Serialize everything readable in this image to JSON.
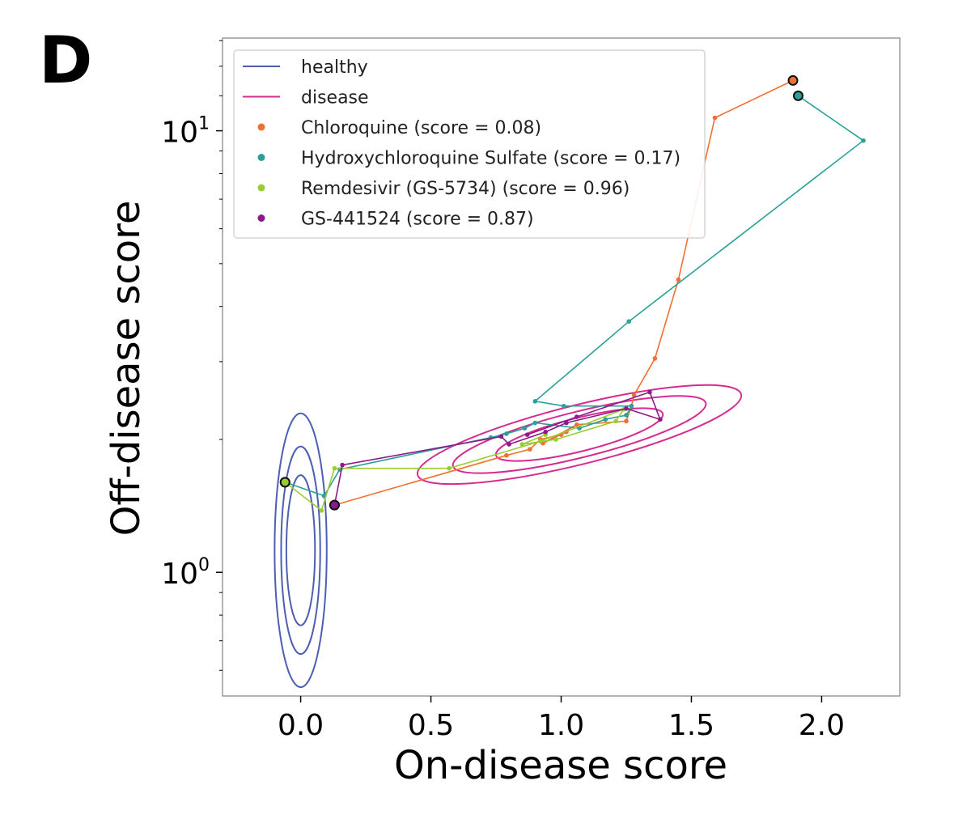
{
  "panel_label": "D",
  "chart_data": {
    "type": "line",
    "xlabel": "On-disease score",
    "ylabel": "Off-disease score",
    "xlim": [
      -0.3,
      2.3
    ],
    "ylim_log10": [
      -0.28,
      1.21
    ],
    "yscale": "log",
    "x_ticks": [
      "0.0",
      "0.5",
      "1.0",
      "1.5",
      "2.0"
    ],
    "x_tick_values": [
      0.0,
      0.5,
      1.0,
      1.5,
      2.0
    ],
    "y_ticks": [
      {
        "value": 1,
        "base": "10",
        "exp": "0"
      },
      {
        "value": 10,
        "base": "10",
        "exp": "1"
      }
    ],
    "grid": false,
    "legend_position": "top-left",
    "legend": [
      {
        "label": "healthy",
        "kind": "line",
        "color": "#4c5fb0"
      },
      {
        "label": "disease",
        "kind": "line",
        "color": "#d62c91"
      },
      {
        "label": "Chloroquine (score = 0.08)",
        "kind": "marker",
        "color": "#f0702f"
      },
      {
        "label": "Hydroxychloroquine Sulfate (score = 0.17)",
        "kind": "marker",
        "color": "#2aa198"
      },
      {
        "label": "Remdesivir (GS-5734) (score = 0.96)",
        "kind": "marker",
        "color": "#9acd32"
      },
      {
        "label": "GS-441524 (score = 0.87)",
        "kind": "marker",
        "color": "#8b1a8b"
      }
    ],
    "contours": [
      {
        "name": "healthy",
        "color": "#4c5fb0",
        "cx": 0.0,
        "cy_log10": 0.05,
        "levels": [
          {
            "rx": 0.055,
            "ry": 0.17
          },
          {
            "rx": 0.075,
            "ry": 0.235
          },
          {
            "rx": 0.1,
            "ry": 0.31
          }
        ],
        "tilt_deg": 0
      },
      {
        "name": "disease",
        "color": "#d62c91",
        "cx": 1.07,
        "cy_log10": 0.312,
        "levels": [
          {
            "rx": 0.33,
            "ry": 0.038
          },
          {
            "rx": 0.5,
            "ry": 0.052
          },
          {
            "rx": 0.64,
            "ry": 0.067
          }
        ],
        "tilt_deg": 14
      }
    ],
    "series": [
      {
        "name": "Chloroquine",
        "color": "#f0702f",
        "x": [
          0.13,
          0.79,
          0.88,
          0.92,
          1.0,
          1.02,
          0.93,
          1.06,
          1.25,
          1.27,
          1.28,
          1.36,
          1.45,
          1.59,
          1.89
        ],
        "y": [
          1.42,
          1.84,
          1.9,
          2.0,
          2.05,
          2.08,
          1.96,
          2.16,
          2.2,
          2.38,
          2.52,
          3.05,
          4.6,
          10.7,
          13.0
        ],
        "start_marker": true,
        "end_marker": true
      },
      {
        "name": "Hydroxychloroquine Sulfate",
        "color": "#2aa198",
        "x": [
          -0.06,
          0.09,
          0.15,
          0.73,
          0.79,
          0.86,
          0.9,
          1.07,
          1.17,
          1.25,
          1.27,
          1.01,
          0.9,
          1.26,
          2.16,
          1.91
        ],
        "y": [
          1.6,
          1.49,
          1.71,
          2.02,
          2.06,
          2.12,
          2.18,
          2.12,
          2.22,
          2.27,
          2.38,
          2.38,
          2.44,
          3.7,
          9.5,
          12.0
        ],
        "start_marker": true,
        "end_marker": true
      },
      {
        "name": "Remdesivir (GS-5734)",
        "color": "#9acd32",
        "x": [
          -0.06,
          0.08,
          0.13,
          0.57,
          0.92,
          1.24,
          1.21,
          0.98,
          0.85,
          0.94
        ],
        "y": [
          1.6,
          1.38,
          1.72,
          1.72,
          1.98,
          2.34,
          2.2,
          2.0,
          1.95,
          2.05
        ],
        "start_marker": true,
        "end_marker": false
      },
      {
        "name": "GS-441524",
        "color": "#8b1a8b",
        "x": [
          0.13,
          0.16,
          0.77,
          0.8,
          0.94,
          1.02,
          1.25,
          1.38,
          1.34,
          1.06,
          0.87
        ],
        "y": [
          1.42,
          1.75,
          2.03,
          1.95,
          2.08,
          2.18,
          2.35,
          2.22,
          2.56,
          2.25,
          2.05
        ],
        "start_marker": true,
        "end_marker": false
      }
    ]
  }
}
